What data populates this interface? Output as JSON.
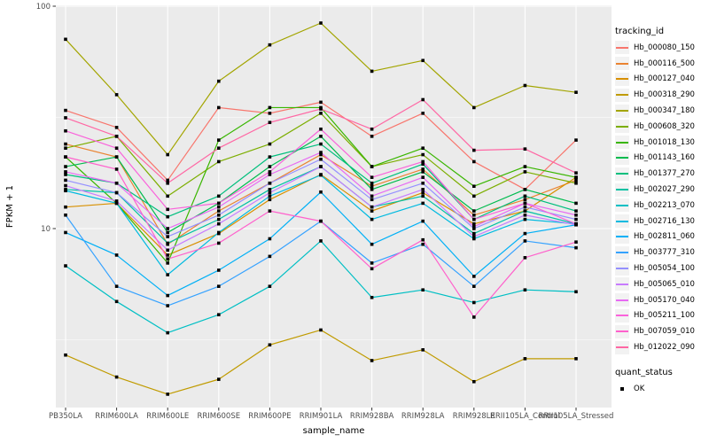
{
  "figure": {
    "x_axis_title": "sample_name",
    "y_axis_title": "FPKM + 1"
  },
  "legend": {
    "tracking_title": "tracking_id",
    "quant_title": "quant_status",
    "quant_items": [
      "OK"
    ]
  },
  "chart_data": {
    "type": "line",
    "title": "",
    "xlabel": "sample_name",
    "ylabel": "FPKM + 1",
    "y_scale": "log10",
    "ylim": [
      1.57,
      101
    ],
    "y_ticks": [
      100,
      10
    ],
    "y_minor_ticks": [
      31.62,
      3.162
    ],
    "grid": true,
    "legend_position": "right",
    "panel_bg": "#EBEBEB",
    "grid_color": "#FFFFFF",
    "tick_color": "#333333",
    "tick_label_color": "#4D4D4D",
    "point_color": "#000000",
    "point_shape": "square",
    "quant_status": "OK",
    "categories": [
      "PB350LA",
      "RRIM600LA",
      "RRIM600LE",
      "RRIM600SE",
      "RRIM600PE",
      "RRIM901LA",
      "RRIM928BA",
      "RRIM928LA",
      "RRIM928LE",
      "RRII105LA_Control",
      "RRII105LA_Stressed"
    ],
    "series": [
      {
        "name": "Hb_000080_150",
        "color": "#F8766D",
        "values": [
          34,
          28.5,
          16.5,
          35,
          33,
          37,
          26,
          33,
          20,
          15,
          25
        ]
      },
      {
        "name": "Hb_000116_500",
        "color": "#EA8331",
        "values": [
          24,
          21,
          8.5,
          12,
          16,
          21.5,
          15.5,
          18.5,
          11.5,
          13.5,
          16.5
        ]
      },
      {
        "name": "Hb_000127_040",
        "color": "#D89000",
        "values": [
          12.5,
          13,
          7.6,
          9.5,
          13.5,
          17.5,
          12,
          14.5,
          10.5,
          12,
          17
        ]
      },
      {
        "name": "Hb_000318_290",
        "color": "#C09B00",
        "values": [
          2.7,
          2.15,
          1.8,
          2.1,
          3.0,
          3.5,
          2.55,
          2.85,
          2.05,
          2.6,
          2.6
        ]
      },
      {
        "name": "Hb_000347_180",
        "color": "#A3A500",
        "values": [
          71,
          40,
          21.5,
          46,
          67,
          84,
          51,
          57,
          35,
          44,
          41
        ]
      },
      {
        "name": "Hb_000608_320",
        "color": "#7CAE00",
        "values": [
          23,
          26,
          14,
          20,
          24,
          33,
          19,
          21.5,
          14,
          18,
          16
        ]
      },
      {
        "name": "Hb_001018_130",
        "color": "#39B600",
        "values": [
          21,
          13,
          7.0,
          25,
          35,
          35,
          19,
          23,
          15.5,
          19,
          17
        ]
      },
      {
        "name": "Hb_001143_160",
        "color": "#00BB4E",
        "values": [
          19,
          21,
          9.6,
          13,
          19,
          26,
          15,
          18,
          12,
          15,
          13
        ]
      },
      {
        "name": "Hb_001377_270",
        "color": "#00BF7D",
        "values": [
          17.5,
          16,
          11.3,
          14,
          21,
          24,
          16,
          19.5,
          11,
          14,
          12
        ]
      },
      {
        "name": "Hb_002027_290",
        "color": "#00C1A3",
        "values": [
          15,
          14.5,
          8.6,
          11,
          15,
          19,
          12.5,
          14,
          9.5,
          12,
          10.5
        ]
      },
      {
        "name": "Hb_002213_070",
        "color": "#00BFC4",
        "values": [
          6.8,
          4.7,
          3.4,
          4.1,
          5.5,
          8.8,
          4.9,
          5.3,
          4.65,
          5.3,
          5.2
        ]
      },
      {
        "name": "Hb_002716_130",
        "color": "#00BAE0",
        "values": [
          14.8,
          13,
          6.2,
          9.6,
          14,
          17.4,
          11,
          13,
          9,
          11,
          10.5
        ]
      },
      {
        "name": "Hb_002811_060",
        "color": "#00B0F6",
        "values": [
          9.6,
          7.6,
          5.0,
          6.5,
          9,
          14.6,
          8.5,
          10.8,
          6.1,
          9.5,
          10.4
        ]
      },
      {
        "name": "Hb_003777_310",
        "color": "#35A2FF",
        "values": [
          11.5,
          5.5,
          4.5,
          5.5,
          7.5,
          10.8,
          7,
          8.5,
          5.5,
          8.8,
          8.2
        ]
      },
      {
        "name": "Hb_005054_100",
        "color": "#9590FF",
        "values": [
          16.5,
          14.5,
          9.2,
          11.5,
          16,
          20.5,
          13.5,
          16,
          10,
          12.5,
          11
        ]
      },
      {
        "name": "Hb_005065_010",
        "color": "#C77CFF",
        "values": [
          15.6,
          13.3,
          8.0,
          10.5,
          14.5,
          19,
          12.5,
          15,
          9.2,
          11.5,
          10.4
        ]
      },
      {
        "name": "Hb_005170_040",
        "color": "#E76BF3",
        "values": [
          18,
          16,
          10,
          12.5,
          17.5,
          22,
          14,
          17,
          10.2,
          13,
          11.5
        ]
      },
      {
        "name": "Hb_005211_100",
        "color": "#FA62DB",
        "values": [
          27.5,
          23,
          12.2,
          13,
          18,
          28,
          17,
          20,
          11,
          13,
          10.5
        ]
      },
      {
        "name": "Hb_007059_010",
        "color": "#FF61CC",
        "values": [
          21,
          18.5,
          7.3,
          8.6,
          12,
          10.8,
          6.6,
          8.9,
          4.0,
          7.4,
          8.7
        ]
      },
      {
        "name": "Hb_012022_090",
        "color": "#FF67A4",
        "values": [
          31.5,
          26,
          16,
          23,
          30,
          34.5,
          28,
          38,
          22.5,
          22.8,
          17.8
        ]
      }
    ]
  }
}
